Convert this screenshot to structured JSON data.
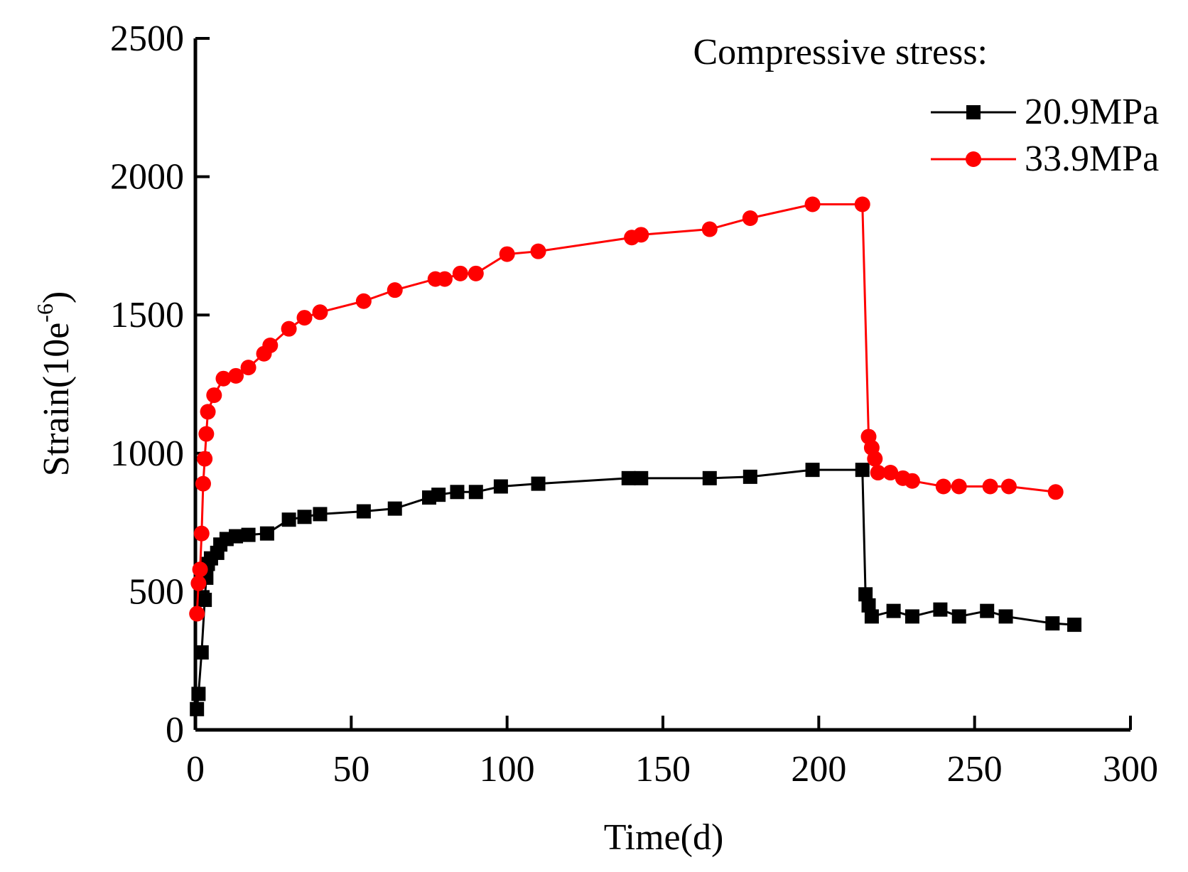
{
  "chart_data": {
    "type": "line",
    "x_label": "Time(d)",
    "y_label": {
      "text": "Strain(10e",
      "superscript": "-6",
      "suffix": ")"
    },
    "legend_title": "Compressive stress:",
    "legend": "upper right",
    "xlim": [
      0,
      300
    ],
    "xticks": [
      0,
      50,
      100,
      150,
      200,
      250,
      300
    ],
    "ylim": [
      0,
      2500
    ],
    "yticks": [
      0,
      500,
      1000,
      1500,
      2000,
      2500
    ],
    "series": [
      {
        "name": "20.9MPa",
        "color": "#000000",
        "marker": "square",
        "x": [
          0.5,
          1,
          2,
          3,
          3.5,
          4,
          5,
          7,
          8,
          10,
          13,
          17,
          23,
          30,
          35,
          40,
          54,
          64,
          75,
          78,
          84,
          90,
          98,
          110,
          139,
          143,
          165,
          178,
          198,
          214,
          215,
          216,
          217,
          224,
          230,
          239,
          245,
          254,
          260,
          275,
          282
        ],
        "values": [
          75,
          130,
          280,
          470,
          550,
          600,
          620,
          640,
          670,
          690,
          700,
          705,
          710,
          760,
          770,
          780,
          790,
          800,
          840,
          850,
          860,
          860,
          880,
          890,
          910,
          910,
          910,
          915,
          940,
          940,
          490,
          450,
          410,
          430,
          410,
          435,
          410,
          430,
          410,
          385,
          380
        ]
      },
      {
        "name": "33.9MPa",
        "color": "#ff0000",
        "marker": "circle",
        "x": [
          0.5,
          1,
          1.5,
          2,
          2.5,
          3,
          3.5,
          4,
          6,
          9,
          13,
          17,
          22,
          24,
          30,
          35,
          40,
          54,
          64,
          77,
          80,
          85,
          90,
          100,
          110,
          140,
          143,
          165,
          178,
          198,
          214,
          216,
          217,
          218,
          219,
          223,
          227,
          230,
          240,
          245,
          255,
          261,
          276
        ],
        "values": [
          420,
          530,
          580,
          710,
          890,
          980,
          1070,
          1150,
          1210,
          1270,
          1280,
          1310,
          1360,
          1390,
          1450,
          1490,
          1510,
          1550,
          1590,
          1630,
          1630,
          1650,
          1650,
          1720,
          1730,
          1780,
          1790,
          1810,
          1850,
          1900,
          1900,
          1060,
          1020,
          980,
          930,
          930,
          910,
          900,
          880,
          880,
          880,
          880,
          860
        ]
      }
    ]
  }
}
